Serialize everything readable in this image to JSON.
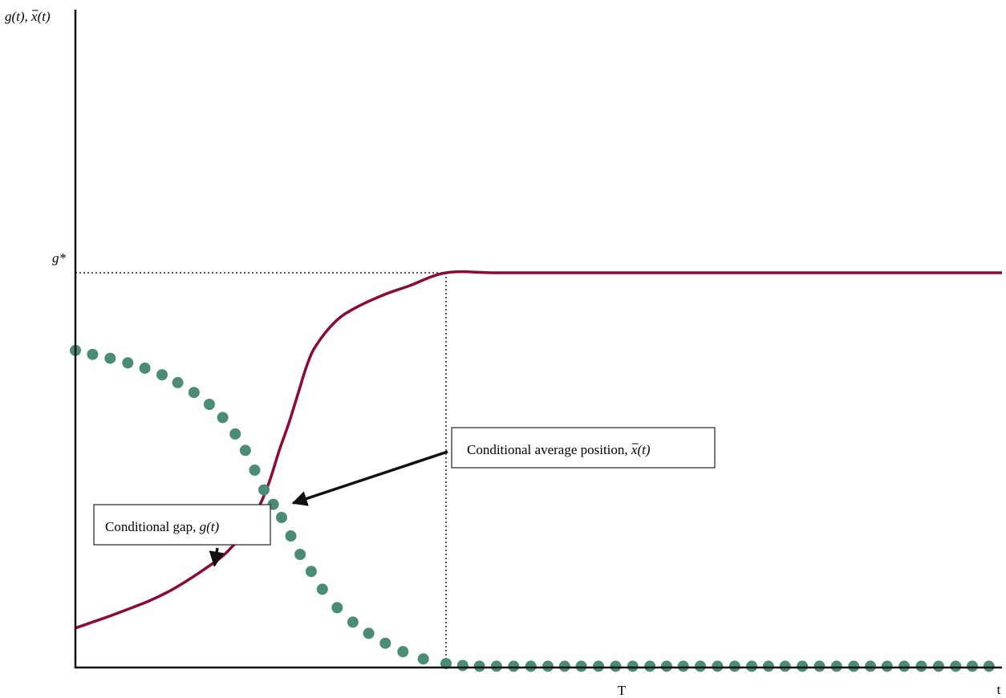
{
  "chart_data": {
    "type": "line",
    "title": "",
    "xlabel": "t",
    "ylabel_parts": {
      "g": "g(t)",
      "sep": ", ",
      "x": "x(t)"
    },
    "xlim": [
      0,
      1
    ],
    "ylim": [
      0,
      1
    ],
    "x_ticks": [
      {
        "value": 0.4,
        "label": "T"
      }
    ],
    "y_ticks": [
      {
        "value": 0.6,
        "label": "g*"
      }
    ],
    "series": [
      {
        "key": "gap",
        "color": "#8b0a3a",
        "style": "solid",
        "x": [
          0.0,
          0.05,
          0.1,
          0.15,
          0.17,
          0.185,
          0.2,
          0.21,
          0.22,
          0.23,
          0.24,
          0.25,
          0.26,
          0.28,
          0.3,
          0.33,
          0.36,
          0.4,
          0.45,
          0.5,
          0.6,
          0.7,
          0.8,
          0.9,
          1.0
        ],
        "y": [
          0.06,
          0.085,
          0.115,
          0.16,
          0.185,
          0.21,
          0.25,
          0.285,
          0.33,
          0.37,
          0.415,
          0.46,
          0.49,
          0.525,
          0.545,
          0.565,
          0.58,
          0.6,
          0.6,
          0.6,
          0.6,
          0.6,
          0.6,
          0.6,
          0.6
        ]
      },
      {
        "key": "position",
        "color": "#4a8c74",
        "style": "dots",
        "x": [
          0.0,
          0.0185,
          0.0375,
          0.0565,
          0.075,
          0.0935,
          0.1105,
          0.128,
          0.1445,
          0.159,
          0.1725,
          0.1835,
          0.1935,
          0.2035,
          0.2135,
          0.2225,
          0.2325,
          0.2425,
          0.2545,
          0.2665,
          0.2825,
          0.2995,
          0.3165,
          0.3345,
          0.3535,
          0.3755,
          0.4,
          0.418,
          0.436,
          0.4545,
          0.473,
          0.4915,
          0.51,
          0.528,
          0.546,
          0.5645,
          0.583,
          0.6015,
          0.62,
          0.638,
          0.656,
          0.6745,
          0.693,
          0.7115,
          0.73,
          0.748,
          0.766,
          0.7845,
          0.803,
          0.8215,
          0.84,
          0.858,
          0.876,
          0.8945,
          0.913,
          0.9315,
          0.95,
          0.968,
          0.986
        ],
        "y": [
          0.482,
          0.476,
          0.47,
          0.463,
          0.455,
          0.445,
          0.433,
          0.418,
          0.4,
          0.38,
          0.355,
          0.33,
          0.3,
          0.27,
          0.248,
          0.228,
          0.2,
          0.172,
          0.146,
          0.119,
          0.091,
          0.069,
          0.052,
          0.037,
          0.024,
          0.013,
          0.006,
          0.003,
          0.002,
          0.002,
          0.002,
          0.002,
          0.002,
          0.002,
          0.002,
          0.002,
          0.002,
          0.002,
          0.002,
          0.002,
          0.002,
          0.002,
          0.002,
          0.002,
          0.002,
          0.002,
          0.002,
          0.002,
          0.002,
          0.002,
          0.002,
          0.002,
          0.002,
          0.002,
          0.002,
          0.002,
          0.002,
          0.002,
          0.002
        ]
      }
    ],
    "annotations": [
      {
        "key": "gap",
        "text": "Conditional gap, ",
        "math": "g(t)",
        "arrow_to": [
          0.15,
          0.155
        ]
      },
      {
        "key": "position",
        "text": "Conditional average position, ",
        "math": "x(t)",
        "arrow_to": [
          0.235,
          0.25
        ]
      }
    ]
  }
}
